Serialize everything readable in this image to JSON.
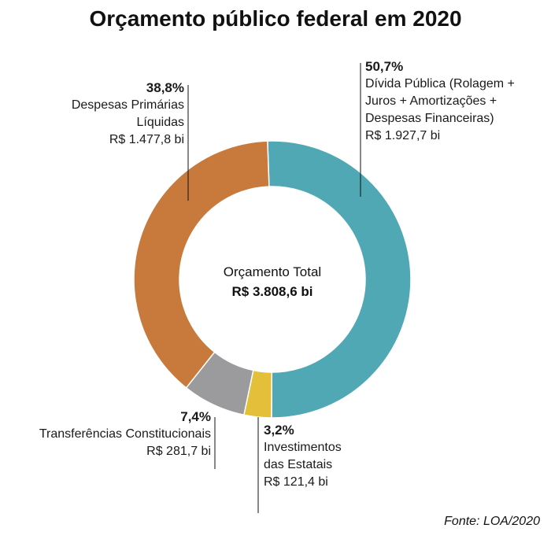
{
  "chart_data": {
    "type": "pie",
    "title": "Orçamento público federal em 2020",
    "categories": [
      "Dívida Pública (Rolagem + Juros + Amortizações + Despesas Financeiras)",
      "Investimentos das Estatais",
      "Transferências Constitucionais",
      "Despesas Primárias Líquidas"
    ],
    "values": [
      50.7,
      3.2,
      7.4,
      38.8
    ],
    "value_labels": [
      "50,7%",
      "3,2%",
      "7,4%",
      "38,8%"
    ],
    "amounts": [
      "R$ 1.927,7 bi",
      "R$ 121,4 bi",
      "R$ 281,7 bi",
      "R$ 1.477,8 bi"
    ],
    "colors": [
      "#4fa8b3",
      "#e3bf3a",
      "#9b9b9d",
      "#c77a3b"
    ],
    "center_label": "Orçamento Total",
    "center_value": "R$ 3.808,6 bi",
    "source": "Fonte: LOA/2020"
  }
}
